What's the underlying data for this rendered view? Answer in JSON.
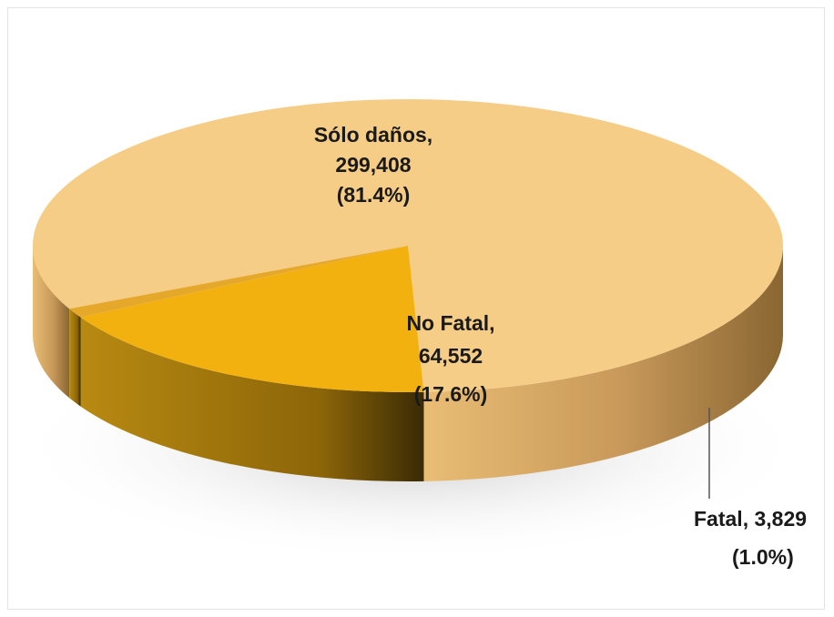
{
  "chart_data": {
    "type": "pie",
    "style": "3d",
    "slices": [
      {
        "label": "Sólo daños",
        "value": 299408,
        "value_text": "299,408",
        "percent_text": "(81.4%)",
        "color": "#F6CD86"
      },
      {
        "label": "No Fatal",
        "value": 64552,
        "value_text": "64,552",
        "percent_text": "(17.6%)",
        "color": "#F2B10E"
      },
      {
        "label": "Fatal",
        "value": 3829,
        "value_text": "3,829",
        "percent_text": "(1.0%)",
        "color": "#E6A82A"
      }
    ]
  }
}
